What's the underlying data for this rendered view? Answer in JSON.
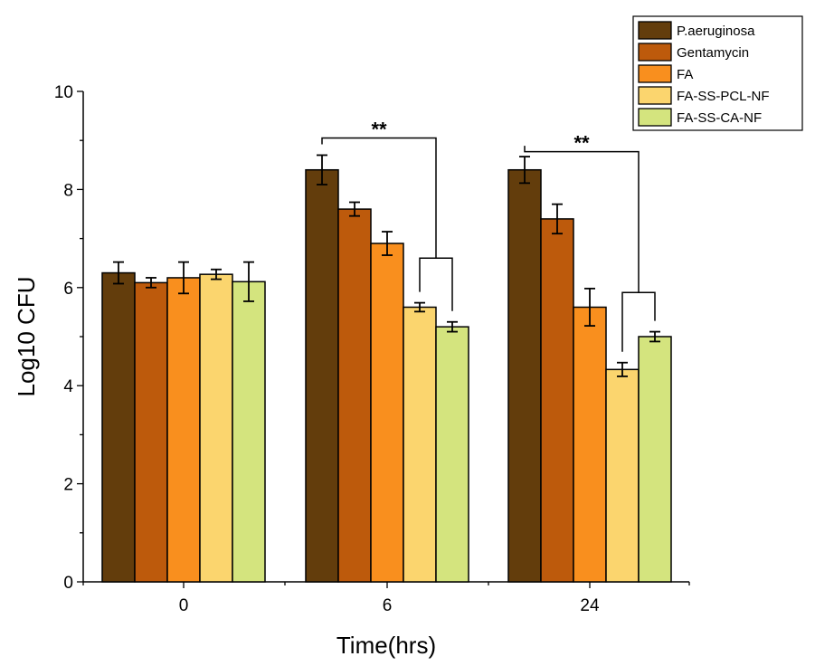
{
  "chart_data": {
    "type": "bar",
    "title": "",
    "xlabel": "Time(hrs)",
    "ylabel": "Log10 CFU",
    "ylim": [
      0,
      10
    ],
    "yticks": [
      "0",
      "2",
      "4",
      "6",
      "8",
      "10"
    ],
    "categories": [
      "0",
      "6",
      "24"
    ],
    "series": [
      {
        "name": "P.aeruginosa",
        "color": "#633d0c",
        "values": [
          6.3,
          8.4,
          8.4
        ],
        "errors": [
          0.22,
          0.3,
          0.27
        ]
      },
      {
        "name": "Gentamycin",
        "color": "#bd5a0c",
        "values": [
          6.1,
          7.6,
          7.4
        ],
        "errors": [
          0.1,
          0.14,
          0.3
        ]
      },
      {
        "name": "FA",
        "color": "#f98f1e",
        "values": [
          6.2,
          6.9,
          5.6
        ],
        "errors": [
          0.32,
          0.24,
          0.38
        ]
      },
      {
        "name": "FA-SS-PCL-NF",
        "color": "#fbd56e",
        "values": [
          6.27,
          5.6,
          4.33
        ],
        "errors": [
          0.1,
          0.09,
          0.14
        ]
      },
      {
        "name": "FA-SS-CA-NF",
        "color": "#d4e47e",
        "values": [
          6.12,
          5.2,
          5.0
        ],
        "errors": [
          0.4,
          0.1,
          0.1
        ]
      }
    ],
    "legend_position": "top-right",
    "annotations": [
      {
        "text": "**",
        "category": "6",
        "from_series": "P.aeruginosa",
        "to_series_group": [
          "FA-SS-PCL-NF",
          "FA-SS-CA-NF"
        ]
      },
      {
        "text": "**",
        "category": "24",
        "from_series": "P.aeruginosa",
        "to_series_group": [
          "FA-SS-PCL-NF",
          "FA-SS-CA-NF"
        ]
      }
    ]
  }
}
